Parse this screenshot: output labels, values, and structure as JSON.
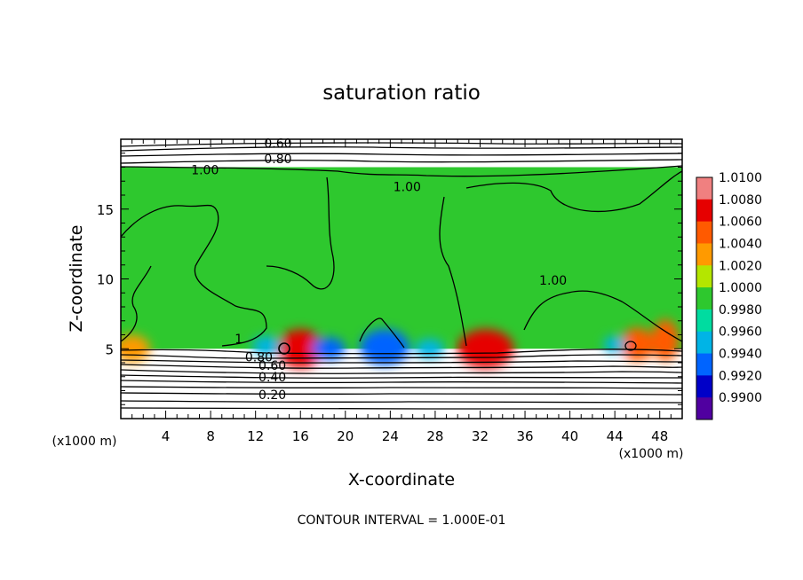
{
  "chart_data": {
    "type": "heatmap",
    "title": "saturation ratio",
    "xlabel": "X-coordinate",
    "ylabel": "Z-coordinate",
    "x_unit_label": "(x1000 m)",
    "footer": "CONTOUR INTERVAL = 1.000E-01",
    "xlim": [
      0,
      50
    ],
    "ylim": [
      0,
      20
    ],
    "x_ticks": [
      4,
      8,
      12,
      16,
      20,
      24,
      28,
      32,
      36,
      40,
      44,
      48
    ],
    "y_ticks": [
      5,
      10,
      15
    ],
    "colorbar": {
      "levels": [
        1.01,
        1.008,
        1.006,
        1.004,
        1.002,
        1.0,
        0.998,
        0.996,
        0.994,
        0.992,
        0.99
      ],
      "labels": [
        "1.0100",
        "1.0080",
        "1.0060",
        "1.0040",
        "1.0020",
        "1.0000",
        "0.9980",
        "0.9960",
        "0.9940",
        "0.9920",
        "0.9900"
      ],
      "colors": [
        "#f08080",
        "#e60000",
        "#ff5a00",
        "#ff9a00",
        "#b4e600",
        "#2ec82e",
        "#00dca0",
        "#00b4e6",
        "#0064ff",
        "#0000c8",
        "#5000a0"
      ]
    },
    "fill_region": {
      "z_bottom": 5,
      "z_top": 18,
      "base_value": 1.001
    },
    "contour_labels": [
      {
        "text": "0.60",
        "x": 14.0,
        "z": 19.7
      },
      {
        "text": "0.80",
        "x": 14.0,
        "z": 18.6
      },
      {
        "text": "1.00",
        "x": 7.5,
        "z": 17.8
      },
      {
        "text": "1.00",
        "x": 25.5,
        "z": 16.6
      },
      {
        "text": "1.00",
        "x": 38.5,
        "z": 9.9
      },
      {
        "text": "1",
        "x": 10.5,
        "z": 5.7
      },
      {
        "text": "0.80",
        "x": 12.3,
        "z": 4.4
      },
      {
        "text": "0.60",
        "x": 13.5,
        "z": 3.8
      },
      {
        "text": "0.40",
        "x": 13.5,
        "z": 3.0
      },
      {
        "text": "0.20",
        "x": 13.5,
        "z": 1.7
      }
    ],
    "anomalies": [
      {
        "x": 16,
        "z": 5.0,
        "value": 1.008,
        "rx": 2.0,
        "rz": 1.4
      },
      {
        "x": 32.5,
        "z": 5.0,
        "value": 1.008,
        "rx": 2.5,
        "rz": 1.4
      },
      {
        "x": 46.0,
        "z": 5.3,
        "value": 1.007,
        "rx": 1.5,
        "rz": 1.2
      },
      {
        "x": 48.5,
        "z": 5.6,
        "value": 1.006,
        "rx": 1.2,
        "rz": 1.5
      },
      {
        "x": 1.0,
        "z": 5.0,
        "value": 1.004,
        "rx": 1.6,
        "rz": 1.0
      },
      {
        "x": 23.5,
        "z": 5.1,
        "value": 0.993,
        "rx": 2.2,
        "rz": 1.3
      },
      {
        "x": 18.5,
        "z": 5.0,
        "value": 0.994,
        "rx": 1.5,
        "rz": 0.8
      },
      {
        "x": 27.5,
        "z": 5.0,
        "value": 0.995,
        "rx": 1.3,
        "rz": 0.7
      },
      {
        "x": 13.0,
        "z": 5.2,
        "value": 0.995,
        "rx": 1.3,
        "rz": 0.7
      },
      {
        "x": 44.0,
        "z": 5.3,
        "value": 0.995,
        "rx": 1.0,
        "rz": 0.6
      }
    ]
  }
}
